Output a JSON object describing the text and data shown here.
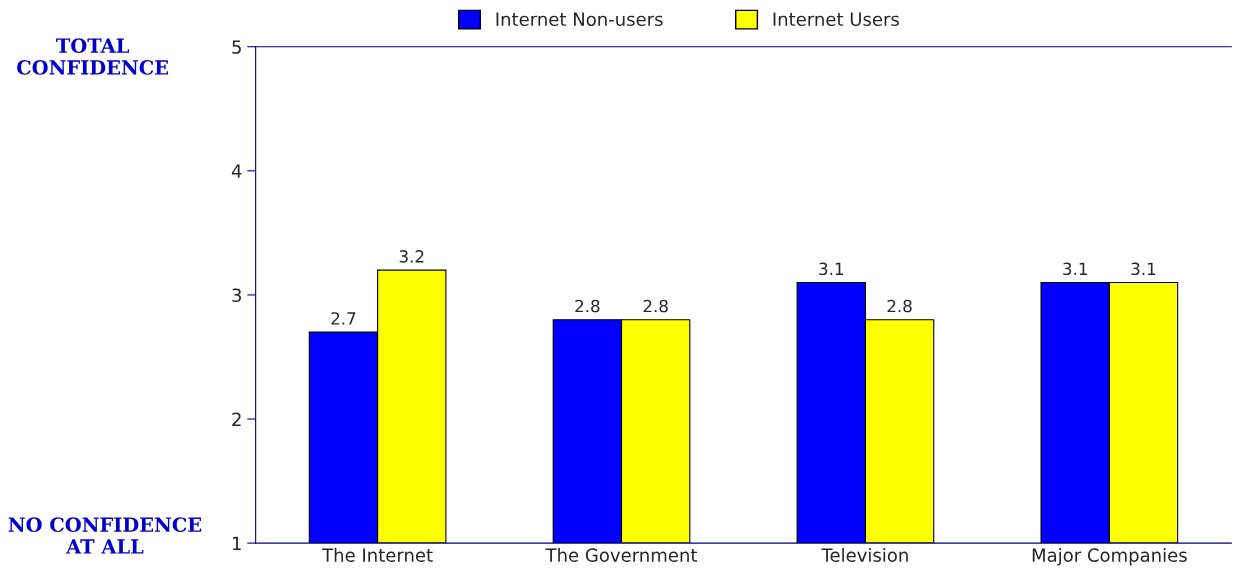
{
  "chart_data": {
    "type": "bar",
    "categories": [
      "The Internet",
      "The Government",
      "Television",
      "Major Companies"
    ],
    "series": [
      {
        "name": "Internet Non-users",
        "color": "#0000ff",
        "values": [
          2.7,
          2.8,
          3.1,
          3.1
        ]
      },
      {
        "name": "Internet Users",
        "color": "#ffff00",
        "values": [
          3.2,
          2.8,
          2.8,
          3.1
        ]
      }
    ],
    "ylim": [
      1,
      5
    ],
    "yticks": [
      1,
      2,
      3,
      4,
      5
    ],
    "grid": false,
    "legend": "top",
    "data_labels": true,
    "annotations": [
      "TOTAL CONFIDENCE",
      "NO CONFIDENCE AT ALL"
    ]
  }
}
